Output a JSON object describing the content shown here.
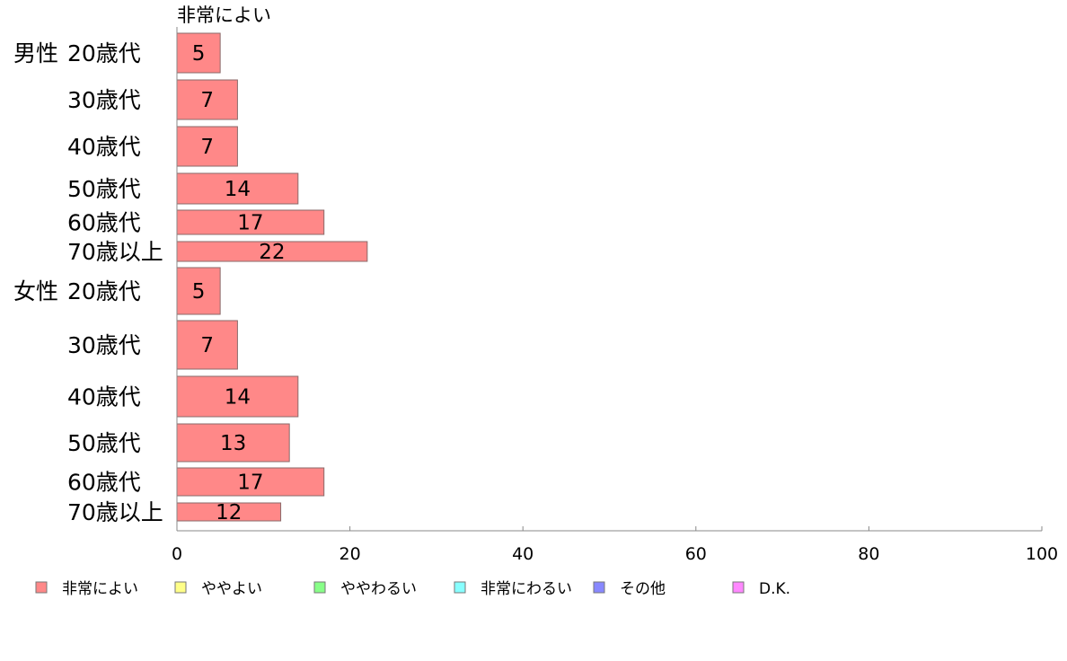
{
  "chart_data": {
    "type": "bar",
    "orientation": "horizontal",
    "stacked": true,
    "top_label": "非常によい",
    "groups": [
      {
        "name": "男性",
        "categories": [
          "20歳代",
          "30歳代",
          "40歳代",
          "50歳代",
          "60歳代",
          "70歳以上"
        ]
      },
      {
        "name": "女性",
        "categories": [
          "20歳代",
          "30歳代",
          "40歳代",
          "50歳代",
          "60歳代",
          "70歳以上"
        ]
      }
    ],
    "series": [
      {
        "name": "非常によい",
        "color": "#ff8888",
        "values": [
          5,
          7,
          7,
          14,
          17,
          22,
          5,
          7,
          14,
          13,
          17,
          12
        ]
      }
    ],
    "legend": [
      {
        "name": "非常によい",
        "color": "#ff8888"
      },
      {
        "name": "ややよい",
        "color": "#ffff88"
      },
      {
        "name": "ややわるい",
        "color": "#88ff88"
      },
      {
        "name": "非常にわるい",
        "color": "#88ffff"
      },
      {
        "name": "その他",
        "color": "#8888ff"
      },
      {
        "name": "D.K.",
        "color": "#ff88ff"
      }
    ],
    "legend_placement": "bottom",
    "xlim": [
      0,
      100
    ],
    "xticks": [
      0,
      20,
      40,
      60,
      80,
      100
    ],
    "grid": false
  }
}
